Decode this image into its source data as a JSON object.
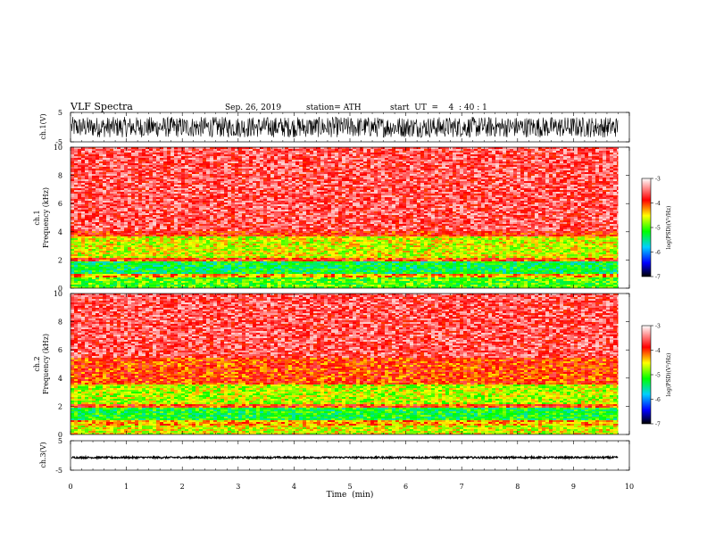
{
  "header": {
    "title": "VLF Spectra",
    "date": "Sep. 26, 2019",
    "station": "station= ATH",
    "start_ut": "start  UT  =    4  : 40 : 1"
  },
  "chart_data": [
    {
      "type": "line",
      "id": "ch1-waveform",
      "ylabel": "ch.1(V)",
      "xlim": [
        0,
        10
      ],
      "ylim": [
        -5,
        5
      ],
      "yticks": [
        "5",
        "-5"
      ],
      "data_extent_min": 9.8,
      "amplitude_range": [
        -3.5,
        3.5
      ]
    },
    {
      "type": "heatmap",
      "id": "ch1-spectrogram",
      "ylabel": "ch.1\nFrequency  (kHz)",
      "xlim": [
        0,
        10
      ],
      "ylim": [
        0,
        10
      ],
      "yticks": [
        "0",
        "2",
        "4",
        "6",
        "8",
        "10"
      ],
      "data_extent_min": 9.8,
      "colorbar": {
        "label": "log(PSD)(V²/Hz)",
        "ticks": [
          "-3",
          "-4",
          "-5",
          "-6",
          "-7"
        ],
        "range": [
          -7,
          -3
        ]
      },
      "bands": [
        {
          "f": [
            0.0,
            0.7
          ],
          "level": -5.0
        },
        {
          "f": [
            0.7,
            1.0
          ],
          "level": -4.3
        },
        {
          "f": [
            1.0,
            1.9
          ],
          "level": -5.3
        },
        {
          "f": [
            1.9,
            2.1
          ],
          "level": -4.0
        },
        {
          "f": [
            2.1,
            3.7
          ],
          "level": -4.6
        },
        {
          "f": [
            3.7,
            4.0
          ],
          "level": -3.9
        },
        {
          "f": [
            4.0,
            10.0
          ],
          "level": -3.6
        }
      ]
    },
    {
      "type": "heatmap",
      "id": "ch2-spectrogram",
      "ylabel": "ch.2\nFrequency  (kHz)",
      "xlim": [
        0,
        10
      ],
      "ylim": [
        0,
        10
      ],
      "yticks": [
        "0",
        "2",
        "4",
        "6",
        "8",
        "10"
      ],
      "data_extent_min": 9.8,
      "colorbar": {
        "label": "log(PSD)(V²/Hz)",
        "ticks": [
          "-3",
          "-4",
          "-5",
          "-6",
          "-7"
        ],
        "range": [
          -7,
          -3
        ]
      },
      "bands": [
        {
          "f": [
            0.0,
            0.6
          ],
          "level": -4.6
        },
        {
          "f": [
            0.6,
            1.0
          ],
          "level": -4.3
        },
        {
          "f": [
            1.0,
            1.9
          ],
          "level": -5.2
        },
        {
          "f": [
            1.9,
            2.1
          ],
          "level": -4.0
        },
        {
          "f": [
            2.1,
            3.5
          ],
          "level": -4.7
        },
        {
          "f": [
            3.5,
            5.5
          ],
          "level": -4.0
        },
        {
          "f": [
            5.5,
            10.0
          ],
          "level": -3.6
        }
      ]
    },
    {
      "type": "line",
      "id": "ch3-waveform",
      "ylabel": "ch.3(V)",
      "xlabel": "Time  (min)",
      "xlim": [
        0,
        10
      ],
      "ylim": [
        -5,
        5
      ],
      "yticks": [
        "5",
        "-5"
      ],
      "xticks": [
        "0",
        "1",
        "2",
        "3",
        "4",
        "5",
        "6",
        "7",
        "8",
        "9",
        "10"
      ],
      "data_extent_min": 9.8,
      "offset": -0.7,
      "amplitude_range": [
        -0.3,
        0.3
      ]
    }
  ],
  "colors": {
    "colormap": [
      "#000000",
      "#0000ff",
      "#00cfff",
      "#00ff00",
      "#ffff00",
      "#ff0000",
      "#ffffff"
    ],
    "frame": "#000000"
  }
}
